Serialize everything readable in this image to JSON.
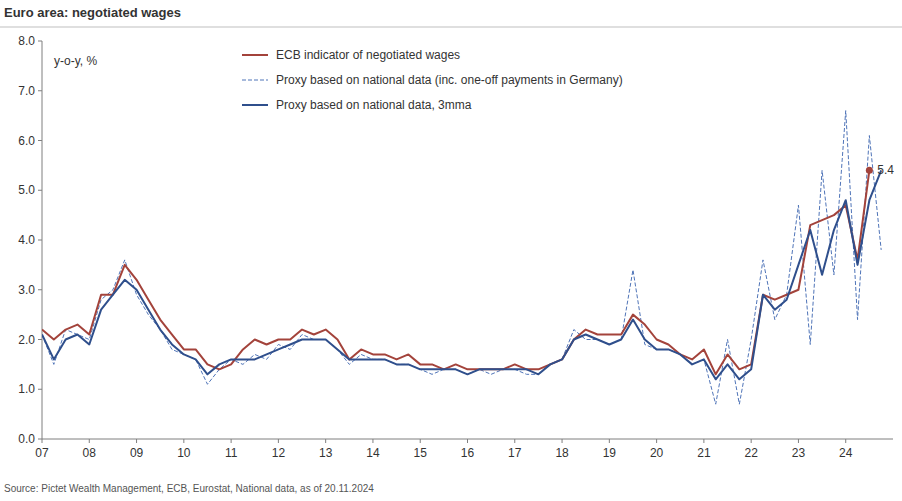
{
  "chart_data": {
    "type": "line",
    "title": "Euro area: negotiated wages",
    "y_label": "y-o-y, %",
    "source": "Source: Pictet Wealth Management, ECB, Eurostat, National data, as of 20.11.2024",
    "x": [
      2007,
      2007.25,
      2007.5,
      2007.75,
      2008,
      2008.25,
      2008.5,
      2008.75,
      2009,
      2009.25,
      2009.5,
      2009.75,
      2010,
      2010.25,
      2010.5,
      2010.75,
      2011,
      2011.25,
      2011.5,
      2011.75,
      2012,
      2012.25,
      2012.5,
      2012.75,
      2013,
      2013.25,
      2013.5,
      2013.75,
      2014,
      2014.25,
      2014.5,
      2014.75,
      2015,
      2015.25,
      2015.5,
      2015.75,
      2016,
      2016.25,
      2016.5,
      2016.75,
      2017,
      2017.25,
      2017.5,
      2017.75,
      2018,
      2018.25,
      2018.5,
      2018.75,
      2019,
      2019.25,
      2019.5,
      2019.75,
      2020,
      2020.25,
      2020.5,
      2020.75,
      2021,
      2021.25,
      2021.5,
      2021.75,
      2022,
      2022.25,
      2022.5,
      2022.75,
      2023,
      2023.25,
      2023.5,
      2023.75,
      2024,
      2024.25,
      2024.5,
      2024.75
    ],
    "series": [
      {
        "name": "ECB indicator of negotiated wages",
        "color": "#a3433b",
        "line_style": "solid",
        "values": [
          2.2,
          2.0,
          2.2,
          2.3,
          2.1,
          2.9,
          2.9,
          3.5,
          3.2,
          2.8,
          2.4,
          2.1,
          1.8,
          1.8,
          1.5,
          1.4,
          1.5,
          1.8,
          2.0,
          1.9,
          2.0,
          2.0,
          2.2,
          2.1,
          2.2,
          2.0,
          1.6,
          1.8,
          1.7,
          1.7,
          1.6,
          1.7,
          1.5,
          1.5,
          1.4,
          1.5,
          1.4,
          1.4,
          1.4,
          1.4,
          1.5,
          1.4,
          1.4,
          1.5,
          1.6,
          2.0,
          2.2,
          2.1,
          2.1,
          2.1,
          2.5,
          2.3,
          2.0,
          1.9,
          1.7,
          1.6,
          1.8,
          1.3,
          1.7,
          1.4,
          1.5,
          2.9,
          2.8,
          2.9,
          3.0,
          4.3,
          4.4,
          4.5,
          4.7,
          3.6,
          5.4,
          null
        ]
      },
      {
        "name": "Proxy based on national data (inc. one-off payments in Germany)",
        "color": "#4f74b8",
        "line_style": "dashed",
        "values": [
          2.1,
          1.5,
          2.2,
          2.1,
          2.0,
          2.8,
          3.0,
          3.6,
          2.9,
          2.5,
          2.2,
          1.8,
          1.7,
          1.6,
          1.1,
          1.4,
          1.6,
          1.5,
          1.7,
          1.6,
          1.9,
          1.8,
          2.1,
          2.0,
          2.0,
          1.8,
          1.5,
          1.7,
          1.6,
          1.6,
          1.5,
          1.5,
          1.4,
          1.3,
          1.4,
          1.4,
          1.3,
          1.4,
          1.3,
          1.4,
          1.4,
          1.3,
          1.3,
          1.5,
          1.6,
          2.2,
          2.0,
          2.0,
          1.9,
          2.0,
          3.4,
          1.9,
          1.8,
          1.8,
          1.7,
          1.5,
          1.6,
          0.7,
          2.0,
          0.7,
          2.0,
          3.6,
          2.4,
          2.9,
          4.7,
          1.9,
          5.4,
          3.3,
          6.6,
          2.4,
          6.1,
          3.8
        ]
      },
      {
        "name": "Proxy based on national data, 3mma",
        "color": "#2f4f8c",
        "line_style": "solid",
        "values": [
          2.1,
          1.6,
          2.0,
          2.1,
          1.9,
          2.6,
          2.9,
          3.2,
          3.0,
          2.6,
          2.2,
          1.9,
          1.7,
          1.6,
          1.3,
          1.5,
          1.6,
          1.6,
          1.6,
          1.7,
          1.8,
          1.9,
          2.0,
          2.0,
          2.0,
          1.8,
          1.6,
          1.6,
          1.6,
          1.6,
          1.5,
          1.5,
          1.4,
          1.4,
          1.4,
          1.4,
          1.3,
          1.4,
          1.4,
          1.4,
          1.4,
          1.4,
          1.3,
          1.5,
          1.6,
          2.0,
          2.1,
          2.0,
          1.9,
          2.0,
          2.4,
          2.0,
          1.8,
          1.8,
          1.7,
          1.5,
          1.6,
          1.2,
          1.5,
          1.2,
          1.4,
          2.9,
          2.6,
          2.8,
          3.5,
          4.2,
          3.3,
          4.2,
          4.8,
          3.5,
          4.8,
          5.4
        ]
      }
    ],
    "annotations": [
      {
        "x": 2024.5,
        "y": 5.4,
        "text": "5.4"
      }
    ],
    "xlim": [
      2007,
      2025
    ],
    "xticks": [
      {
        "value": 2007,
        "label": "07"
      },
      {
        "value": 2008,
        "label": "08"
      },
      {
        "value": 2009,
        "label": "09"
      },
      {
        "value": 2010,
        "label": "10"
      },
      {
        "value": 2011,
        "label": "11"
      },
      {
        "value": 2012,
        "label": "12"
      },
      {
        "value": 2013,
        "label": "13"
      },
      {
        "value": 2014,
        "label": "14"
      },
      {
        "value": 2015,
        "label": "15"
      },
      {
        "value": 2016,
        "label": "16"
      },
      {
        "value": 2017,
        "label": "17"
      },
      {
        "value": 2018,
        "label": "18"
      },
      {
        "value": 2019,
        "label": "19"
      },
      {
        "value": 2020,
        "label": "20"
      },
      {
        "value": 2021,
        "label": "21"
      },
      {
        "value": 2022,
        "label": "22"
      },
      {
        "value": 2023,
        "label": "23"
      },
      {
        "value": 2024,
        "label": "24"
      }
    ],
    "ylim": [
      0,
      8
    ],
    "yticks": [
      {
        "value": 0,
        "label": "0.0"
      },
      {
        "value": 1,
        "label": "1.0"
      },
      {
        "value": 2,
        "label": "2.0"
      },
      {
        "value": 3,
        "label": "3.0"
      },
      {
        "value": 4,
        "label": "4.0"
      },
      {
        "value": 5,
        "label": "5.0"
      },
      {
        "value": 6,
        "label": "6.0"
      },
      {
        "value": 7,
        "label": "7.0"
      },
      {
        "value": 8,
        "label": "8.0"
      }
    ],
    "grid": false,
    "legend": "top-left"
  }
}
